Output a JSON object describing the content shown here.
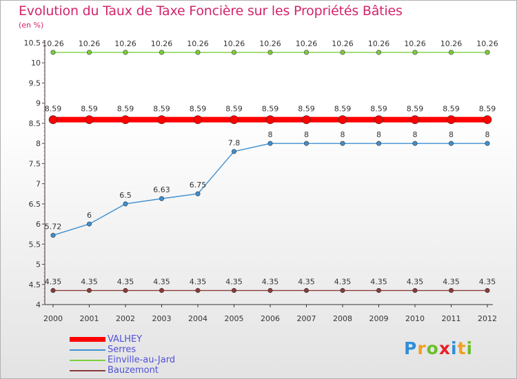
{
  "chart_data": {
    "type": "line",
    "title": "Evolution du Taux de Taxe Foncière sur les Propriétés Bâties",
    "ylabel": "(en %)",
    "xlabel": "",
    "x": [
      "2000",
      "2001",
      "2002",
      "2003",
      "2004",
      "2005",
      "2006",
      "2007",
      "2008",
      "2009",
      "2010",
      "2011",
      "2012"
    ],
    "ylim": [
      4,
      10.5
    ],
    "yticks": [
      "4",
      "4.5",
      "5",
      "5.5",
      "6",
      "6.5",
      "7",
      "7.5",
      "8",
      "8.5",
      "9",
      "9.5",
      "10",
      "10.5"
    ],
    "series": [
      {
        "name": "Einville-au-Jard",
        "color": "#7ccf3c",
        "values": [
          10.26,
          10.26,
          10.26,
          10.26,
          10.26,
          10.26,
          10.26,
          10.26,
          10.26,
          10.26,
          10.26,
          10.26,
          10.26
        ]
      },
      {
        "name": "VALHEY",
        "color": "#ff0000",
        "values": [
          8.59,
          8.59,
          8.59,
          8.59,
          8.59,
          8.59,
          8.59,
          8.59,
          8.59,
          8.59,
          8.59,
          8.59,
          8.59
        ]
      },
      {
        "name": "Serres",
        "color": "#3f8fd0",
        "values": [
          5.72,
          6,
          6.5,
          6.63,
          6.75,
          7.8,
          8,
          8,
          8,
          8,
          8,
          8,
          8
        ]
      },
      {
        "name": "Bauzemont",
        "color": "#8b3a3a",
        "values": [
          4.35,
          4.35,
          4.35,
          4.35,
          4.35,
          4.35,
          4.35,
          4.35,
          4.35,
          4.35,
          4.35,
          4.35,
          4.35
        ]
      }
    ],
    "data_labels": {
      "Einville-au-Jard": [
        "10.26",
        "10.26",
        "10.26",
        "10.26",
        "10.26",
        "10.26",
        "10.26",
        "10.26",
        "10.26",
        "10.26",
        "10.26",
        "10.26",
        "10.26"
      ],
      "VALHEY": [
        "8.59",
        "8.59",
        "8.59",
        "8.59",
        "8.59",
        "8.59",
        "8.59",
        "8.59",
        "8.59",
        "8.59",
        "8.59",
        "8.59",
        "8.59"
      ],
      "Serres": [
        "5.72",
        "6",
        "6.5",
        "6.63",
        "6.75",
        "7.8",
        "8",
        "8",
        "8",
        "8",
        "8",
        "8",
        "8"
      ],
      "Bauzemont": [
        "4.35",
        "4.35",
        "4.35",
        "4.35",
        "4.35",
        "4.35",
        "4.35",
        "4.35",
        "4.35",
        "4.35",
        "4.35",
        "4.35",
        "4.35"
      ]
    },
    "legend": [
      {
        "name": "VALHEY",
        "color": "#ff0000"
      },
      {
        "name": "Serres",
        "color": "#3f8fd0"
      },
      {
        "name": "Einville-au-Jard",
        "color": "#7ccf3c"
      },
      {
        "name": "Bauzemont",
        "color": "#8b3a3a"
      }
    ],
    "legend_position": "bottom-left"
  },
  "logo": {
    "letters": [
      "P",
      "r",
      "o",
      "x",
      "i",
      "t",
      "i"
    ],
    "colors": [
      "#2f8fd8",
      "#f0a020",
      "#6cbf2c",
      "#e8202a",
      "#2f8fd8",
      "#f0a020",
      "#6cbf2c"
    ]
  }
}
